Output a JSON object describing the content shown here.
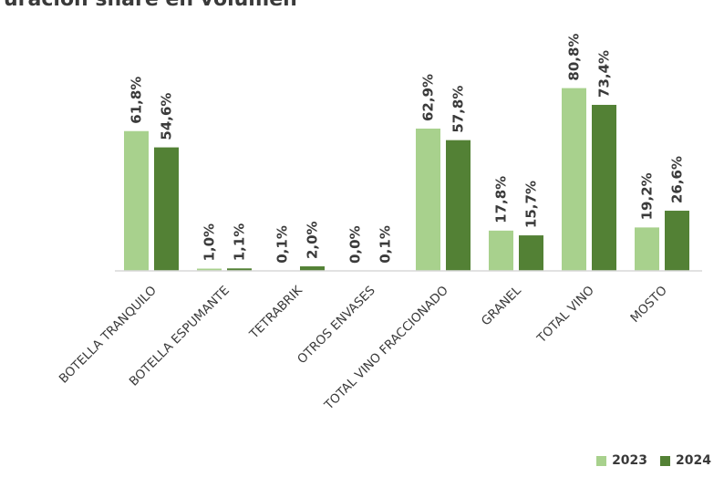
{
  "chart_data": {
    "type": "bar",
    "title": "uración share en volumen",
    "categories": [
      "BOTELLA TRANQUILO",
      "BOTELLA ESPUMANTE",
      "TETRABRIK",
      "OTROS ENVASES",
      "TOTAL VINO FRACCIONADO",
      "GRANEL",
      "TOTAL VINO",
      "MOSTO"
    ],
    "series": [
      {
        "name": "2023",
        "color": "#a8d18d",
        "values": [
          61.8,
          1.0,
          0.1,
          0.0,
          62.9,
          17.8,
          80.8,
          19.2
        ],
        "labels": [
          "61,8%",
          "1,0%",
          "0,1%",
          "0,0%",
          "62,9%",
          "17,8%",
          "80,8%",
          "19,2%"
        ]
      },
      {
        "name": "2024",
        "color": "#538135",
        "values": [
          54.6,
          1.1,
          2.0,
          0.1,
          57.8,
          15.7,
          73.4,
          26.6
        ],
        "labels": [
          "54,6%",
          "1,1%",
          "2,0%",
          "0,1%",
          "57,8%",
          "15,7%",
          "73,4%",
          "26,6%"
        ]
      }
    ],
    "ylim": [
      0,
      100
    ],
    "axis_color": "#d9d9d9",
    "grid": false,
    "legend_position": "bottom-right"
  }
}
